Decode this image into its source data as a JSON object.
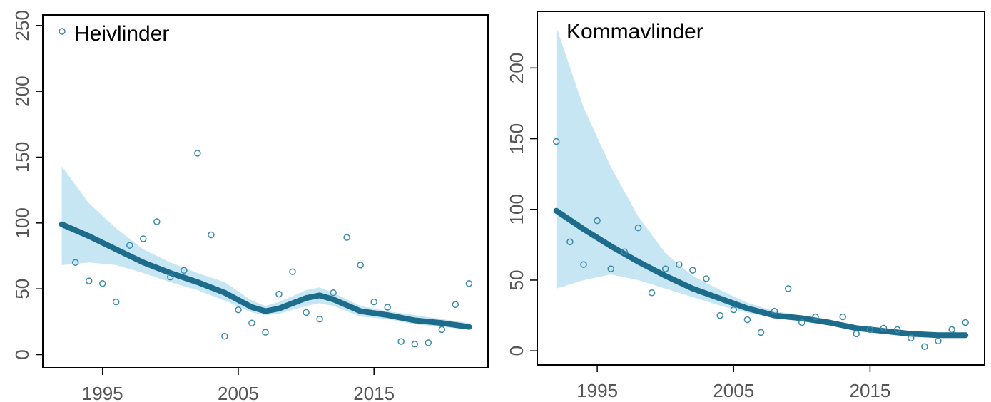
{
  "chart_data": [
    {
      "type": "scatter",
      "title": "Heivlinder",
      "legend": {
        "label": "Heivlinder",
        "placement": "top-left",
        "marker": "open-circle"
      },
      "xlabel": "",
      "ylabel": "",
      "xlim": [
        1990.6,
        2023.4
      ],
      "ylim": [
        -10,
        258
      ],
      "x_ticks": [
        1995,
        2005,
        2015
      ],
      "x_tick_labels": [
        "1995",
        "2005",
        "2015"
      ],
      "y_ticks": [
        0,
        50,
        100,
        150,
        200,
        250
      ],
      "y_tick_labels": [
        "0",
        "50",
        "100",
        "150",
        "200",
        "250"
      ],
      "colors": {
        "points": "#3b8ba8",
        "trend": "#1d6c8c",
        "band": "#c7e6f4"
      },
      "points": {
        "x": [
          1993,
          1994,
          1995,
          1996,
          1997,
          1998,
          1999,
          2000,
          2001,
          2002,
          2003,
          2004,
          2005,
          2006,
          2007,
          2008,
          2009,
          2010,
          2011,
          2012,
          2013,
          2014,
          2015,
          2016,
          2017,
          2018,
          2019,
          2020,
          2021,
          2022
        ],
        "y": [
          70,
          56,
          54,
          40,
          83,
          88,
          101,
          59,
          64,
          153,
          91,
          14,
          34,
          24,
          17,
          46,
          63,
          32,
          27,
          47,
          89,
          68,
          40,
          36,
          10,
          8,
          9,
          19,
          38,
          54
        ]
      },
      "trend": {
        "x": [
          1992,
          1994,
          1996,
          1998,
          2000,
          2002,
          2004,
          2006,
          2007,
          2008,
          2010,
          2011,
          2012,
          2014,
          2016,
          2018,
          2020,
          2022
        ],
        "y": [
          99,
          90,
          80,
          70,
          62,
          55,
          47,
          36,
          33,
          35,
          43,
          45,
          42,
          33,
          30,
          26,
          24,
          21
        ]
      },
      "band": {
        "x": [
          1992,
          1994,
          1996,
          1998,
          2000,
          2002,
          2004,
          2006,
          2007,
          2008,
          2010,
          2011,
          2012,
          2014,
          2016,
          2018,
          2020,
          2022
        ],
        "lower": [
          68,
          70,
          68,
          62,
          55,
          49,
          41,
          32,
          30,
          31,
          37,
          39,
          37,
          29,
          27,
          23,
          21,
          19
        ],
        "upper": [
          143,
          115,
          96,
          80,
          70,
          62,
          55,
          41,
          37,
          40,
          49,
          51,
          47,
          37,
          33,
          30,
          27,
          24
        ]
      }
    },
    {
      "type": "scatter",
      "title": "Kommavlinder",
      "xlabel": "",
      "ylabel": "",
      "xlim": [
        1990.6,
        2023.4
      ],
      "ylim": [
        -10,
        240
      ],
      "x_ticks": [
        1995,
        2005,
        2015
      ],
      "x_tick_labels": [
        "1995",
        "2005",
        "2015"
      ],
      "y_ticks": [
        0,
        50,
        100,
        150,
        200
      ],
      "y_tick_labels": [
        "0",
        "50",
        "100",
        "150",
        "200"
      ],
      "colors": {
        "points": "#3b8ba8",
        "trend": "#1d6c8c",
        "band": "#c7e6f4"
      },
      "points": {
        "x": [
          1992,
          1993,
          1994,
          1995,
          1996,
          1997,
          1998,
          1999,
          2000,
          2001,
          2002,
          2003,
          2004,
          2005,
          2006,
          2007,
          2008,
          2009,
          2010,
          2011,
          2013,
          2014,
          2015,
          2016,
          2017,
          2018,
          2019,
          2020,
          2021,
          2022
        ],
        "y": [
          148,
          77,
          61,
          92,
          58,
          70,
          87,
          41,
          58,
          61,
          57,
          51,
          25,
          29,
          22,
          13,
          28,
          44,
          20,
          24,
          24,
          12,
          15,
          16,
          15,
          9,
          3,
          7,
          15,
          20
        ]
      },
      "trend": {
        "x": [
          1992,
          1994,
          1996,
          1998,
          2000,
          2002,
          2004,
          2006,
          2008,
          2010,
          2012,
          2014,
          2016,
          2018,
          2020,
          2022
        ],
        "y": [
          99,
          86,
          74,
          63,
          53,
          44,
          37,
          30,
          25,
          23,
          20,
          16,
          14,
          12,
          11,
          11
        ]
      },
      "band": {
        "x": [
          1992,
          1994,
          1996,
          1998,
          2000,
          2002,
          2004,
          2006,
          2008,
          2010,
          2012,
          2014,
          2016,
          2018,
          2020,
          2022
        ],
        "lower": [
          44,
          50,
          54,
          50,
          44,
          38,
          32,
          27,
          23,
          21,
          18,
          14,
          13,
          11,
          10,
          9
        ],
        "upper": [
          229,
          172,
          130,
          95,
          69,
          53,
          43,
          34,
          28,
          25,
          22,
          18,
          16,
          14,
          13,
          13
        ]
      }
    }
  ]
}
